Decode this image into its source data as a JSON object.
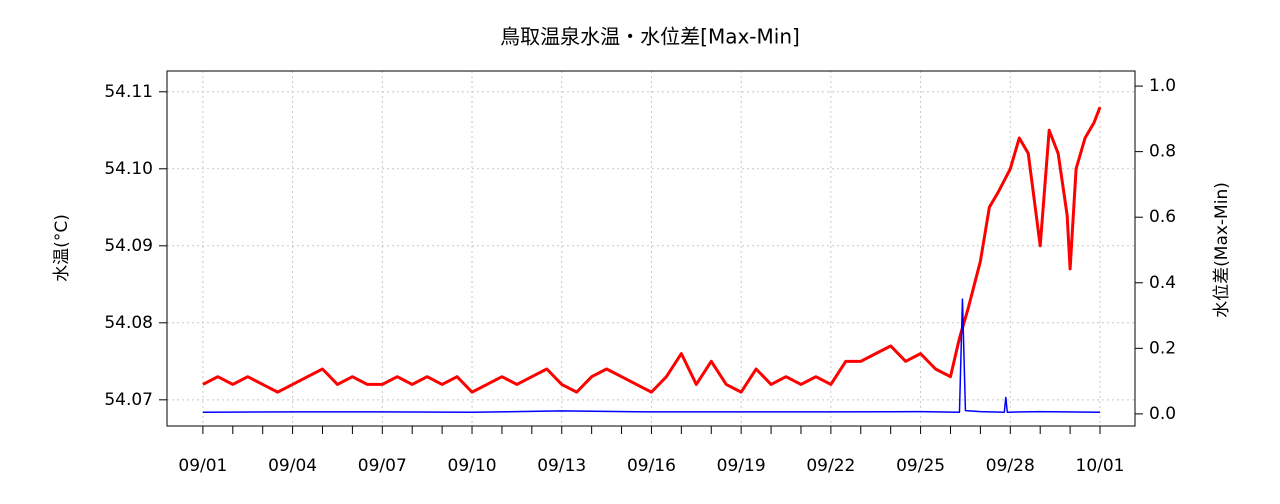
{
  "chart_data": {
    "type": "line",
    "title": "鳥取温泉水温・水位差[Max-Min]",
    "y_label": "水温(°C)",
    "y2_label": "水位差(Max-Min)",
    "xlim": [
      -1.2,
      31.17
    ],
    "xticks": [
      {
        "value": 0,
        "label": "09/01"
      },
      {
        "value": 3,
        "label": "09/04"
      },
      {
        "value": 6,
        "label": "09/07"
      },
      {
        "value": 9,
        "label": "09/10"
      },
      {
        "value": 12,
        "label": "09/13"
      },
      {
        "value": 15,
        "label": "09/16"
      },
      {
        "value": 18,
        "label": "09/19"
      },
      {
        "value": 21,
        "label": "09/22"
      },
      {
        "value": 24,
        "label": "09/25"
      },
      {
        "value": 27,
        "label": "09/28"
      },
      {
        "value": 30,
        "label": "10/01"
      }
    ],
    "xminorticks": [
      1,
      2,
      4,
      5,
      7,
      8,
      10,
      11,
      13,
      14,
      16,
      17,
      19,
      20,
      22,
      23,
      25,
      26,
      28,
      29
    ],
    "ylim": [
      54.0666,
      54.1127
    ],
    "yticks": [
      54.07,
      54.08,
      54.09,
      {
        "value": 54.1,
        "label": "54.10"
      },
      54.11
    ],
    "y2lim": [
      -0.037,
      1.046
    ],
    "y2ticks": [
      {
        "value": 0,
        "label": "0.0"
      },
      0.2,
      0.4,
      0.6,
      0.8,
      {
        "value": 1,
        "label": "1.0"
      }
    ],
    "grid": true,
    "series": [
      {
        "name": "水温",
        "color": "#ff0000",
        "x": [
          0,
          0.5,
          1,
          1.5,
          2,
          2.5,
          3,
          3.5,
          4,
          4.5,
          5,
          5.5,
          6,
          6.5,
          7,
          7.5,
          8,
          8.5,
          9,
          9.5,
          10,
          10.5,
          11,
          11.5,
          12,
          12.5,
          13,
          13.5,
          14,
          14.5,
          15,
          15.5,
          16,
          16.5,
          17,
          17.5,
          18,
          18.5,
          19,
          19.5,
          20,
          20.5,
          21,
          21.5,
          22,
          22.5,
          23,
          23.5,
          24,
          24.5,
          25,
          25.3,
          25.6,
          26,
          26.3,
          26.6,
          27,
          27.3,
          27.6,
          28,
          28.3,
          28.6,
          28.9,
          29,
          29.2,
          29.5,
          29.8,
          30
        ],
        "values": [
          54.072,
          54.073,
          54.072,
          54.073,
          54.072,
          54.071,
          54.072,
          54.073,
          54.074,
          54.072,
          54.073,
          54.072,
          54.072,
          54.073,
          54.072,
          54.073,
          54.072,
          54.073,
          54.071,
          54.072,
          54.073,
          54.072,
          54.073,
          54.074,
          54.072,
          54.071,
          54.073,
          54.074,
          54.073,
          54.072,
          54.071,
          54.073,
          54.076,
          54.072,
          54.075,
          54.072,
          54.071,
          54.074,
          54.072,
          54.073,
          54.072,
          54.073,
          54.072,
          54.075,
          54.075,
          54.076,
          54.077,
          54.075,
          54.076,
          54.074,
          54.073,
          54.078,
          54.082,
          54.088,
          54.095,
          54.097,
          54.1,
          54.104,
          54.102,
          54.09,
          54.105,
          54.102,
          54.094,
          54.087,
          54.1,
          54.104,
          54.106,
          54.108
        ]
      },
      {
        "name": "水位差",
        "color": "#0000ff",
        "axis": "y2",
        "x": [
          0,
          3,
          6,
          9,
          12,
          15,
          18,
          21,
          24,
          25.3,
          25.4,
          25.5,
          26,
          26.8,
          26.85,
          26.9,
          28,
          30
        ],
        "values": [
          0.005,
          0.006,
          0.006,
          0.005,
          0.009,
          0.006,
          0.006,
          0.006,
          0.007,
          0.005,
          0.35,
          0.01,
          0.007,
          0.005,
          0.05,
          0.005,
          0.007,
          0.005
        ]
      }
    ]
  }
}
